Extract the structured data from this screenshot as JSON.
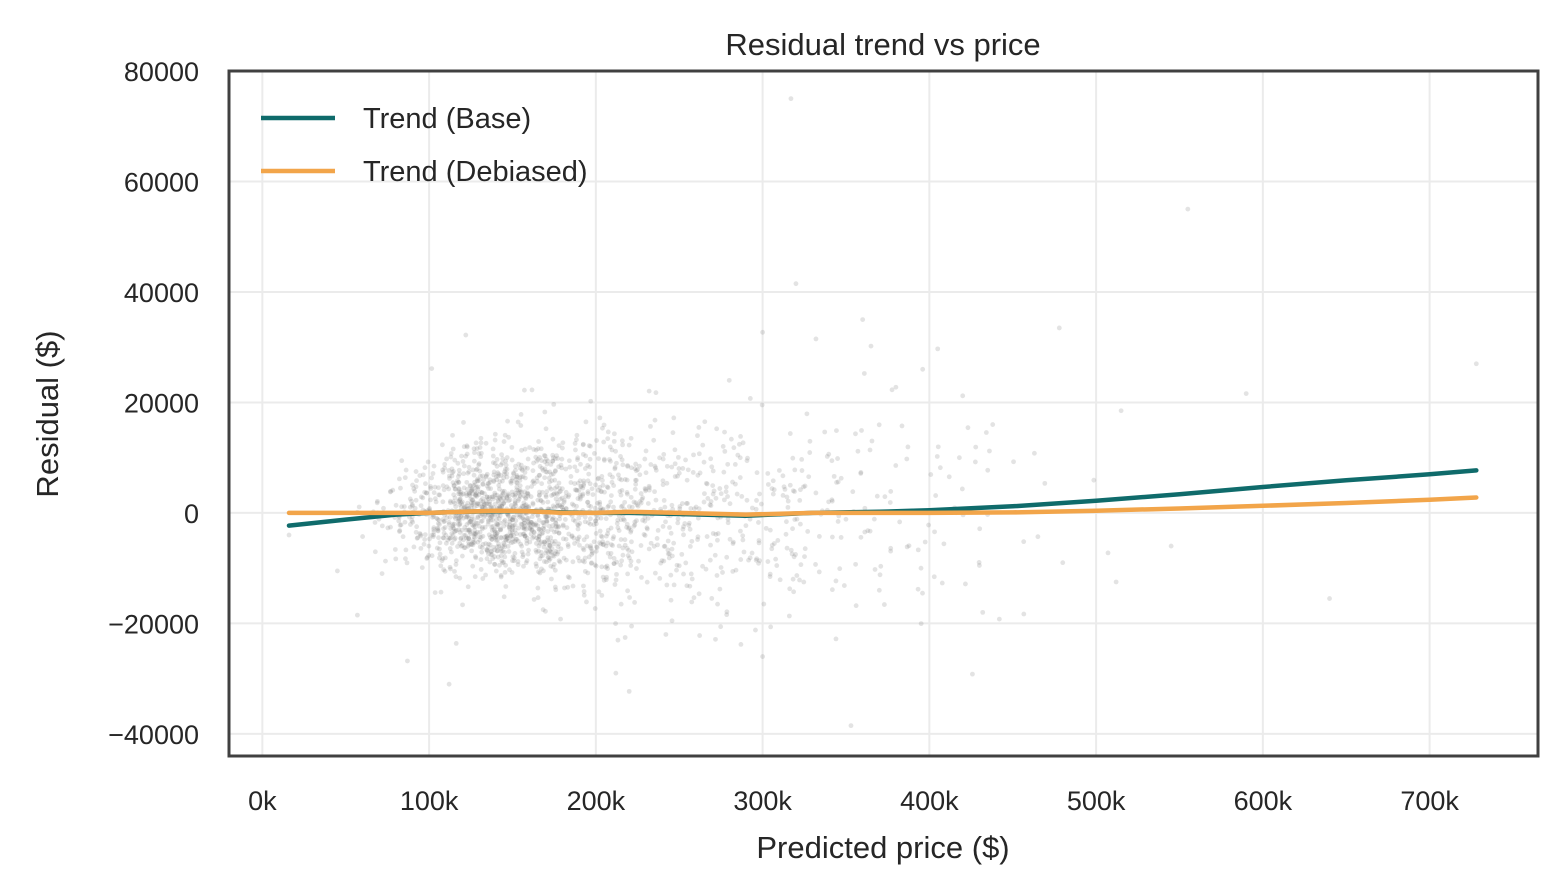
{
  "chart_data": {
    "type": "scatter",
    "title": "Residual trend vs price",
    "xlabel": "Predicted price ($)",
    "ylabel": "Residual ($)",
    "xlim": [
      -20000,
      765000
    ],
    "ylim": [
      -44000,
      80000
    ],
    "x_ticks": [
      0,
      100000,
      200000,
      300000,
      400000,
      500000,
      600000,
      700000
    ],
    "x_tick_labels": [
      "0k",
      "100k",
      "200k",
      "300k",
      "400k",
      "500k",
      "600k",
      "700k"
    ],
    "y_ticks": [
      -40000,
      -20000,
      0,
      20000,
      40000,
      60000,
      80000
    ],
    "y_tick_labels": [
      "−40000",
      "−20000",
      "0",
      "20000",
      "40000",
      "60000",
      "80000"
    ],
    "grid": true,
    "legend_position": "top-left",
    "scatter_color": "#808080",
    "series": [
      {
        "name": "Trend (Base)",
        "color": "#0f6b6b",
        "x": [
          16000,
          50000,
          80000,
          100000,
          120000,
          140000,
          160000,
          180000,
          200000,
          220000,
          250000,
          290000,
          330000,
          370000,
          400000,
          450000,
          500000,
          550000,
          600000,
          650000,
          700000,
          728000
        ],
        "y": [
          -2300,
          -1200,
          -300,
          0,
          200,
          300,
          300,
          100,
          0,
          0,
          -200,
          -500,
          0,
          200,
          500,
          1200,
          2200,
          3400,
          4700,
          5900,
          7000,
          7700
        ]
      },
      {
        "name": "Trend (Debiased)",
        "color": "#f2a54a",
        "x": [
          16000,
          50000,
          80000,
          100000,
          120000,
          140000,
          160000,
          180000,
          200000,
          220000,
          250000,
          290000,
          330000,
          370000,
          400000,
          450000,
          500000,
          550000,
          600000,
          650000,
          700000,
          728000
        ],
        "y": [
          0,
          0,
          0,
          0,
          200,
          400,
          300,
          0,
          0,
          200,
          0,
          -300,
          0,
          0,
          0,
          100,
          400,
          800,
          1300,
          1800,
          2400,
          2800
        ]
      }
    ],
    "outliers": [
      {
        "x": 317000,
        "y": 75000
      },
      {
        "x": 555000,
        "y": 55000
      },
      {
        "x": 320000,
        "y": 41500
      },
      {
        "x": 360000,
        "y": 35000
      },
      {
        "x": 300000,
        "y": 32700
      },
      {
        "x": 122000,
        "y": 32200
      },
      {
        "x": 332000,
        "y": 31500
      },
      {
        "x": 405000,
        "y": 29700
      },
      {
        "x": 365000,
        "y": 30200
      },
      {
        "x": 728000,
        "y": 27000
      },
      {
        "x": 396000,
        "y": 26000
      },
      {
        "x": 280000,
        "y": 24000
      },
      {
        "x": 420000,
        "y": 21200
      },
      {
        "x": 590000,
        "y": 21600
      },
      {
        "x": 515000,
        "y": 18500
      },
      {
        "x": 438000,
        "y": 16000
      },
      {
        "x": 463000,
        "y": 10800
      },
      {
        "x": 418000,
        "y": 10000
      },
      {
        "x": 545000,
        "y": -6000
      },
      {
        "x": 640000,
        "y": -15500
      },
      {
        "x": 212000,
        "y": -29000
      },
      {
        "x": 220000,
        "y": -32300
      },
      {
        "x": 112000,
        "y": -31000
      },
      {
        "x": 87000,
        "y": -26800
      },
      {
        "x": 300000,
        "y": -26000
      },
      {
        "x": 353000,
        "y": -38500
      },
      {
        "x": 287000,
        "y": -23800
      },
      {
        "x": 344000,
        "y": -22800
      },
      {
        "x": 512000,
        "y": -12500
      },
      {
        "x": 57000,
        "y": -18500
      },
      {
        "x": 45000,
        "y": -10500
      },
      {
        "x": 16000,
        "y": -4000
      },
      {
        "x": 395000,
        "y": -10000
      },
      {
        "x": 430000,
        "y": -9500
      },
      {
        "x": 480000,
        "y": -9000
      },
      {
        "x": 432000,
        "y": -18000
      },
      {
        "x": 370000,
        "y": -14000
      },
      {
        "x": 242000,
        "y": -22000
      }
    ]
  }
}
